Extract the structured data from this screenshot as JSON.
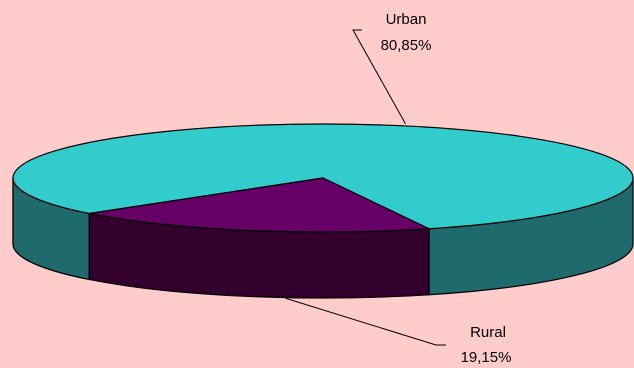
{
  "chart_data": {
    "type": "pie",
    "style": "3d",
    "slices": [
      {
        "name": "Urban",
        "value": 80.85,
        "label": "80,85%",
        "color": "#33cccc",
        "side_color": "#1e6a6c"
      },
      {
        "name": "Rural",
        "value": 19.15,
        "label": "19,15%",
        "color": "#660066",
        "side_color": "#33002e"
      }
    ],
    "background": "#ffcccc",
    "legend": "none",
    "labels": "outside-with-leader-lines"
  }
}
